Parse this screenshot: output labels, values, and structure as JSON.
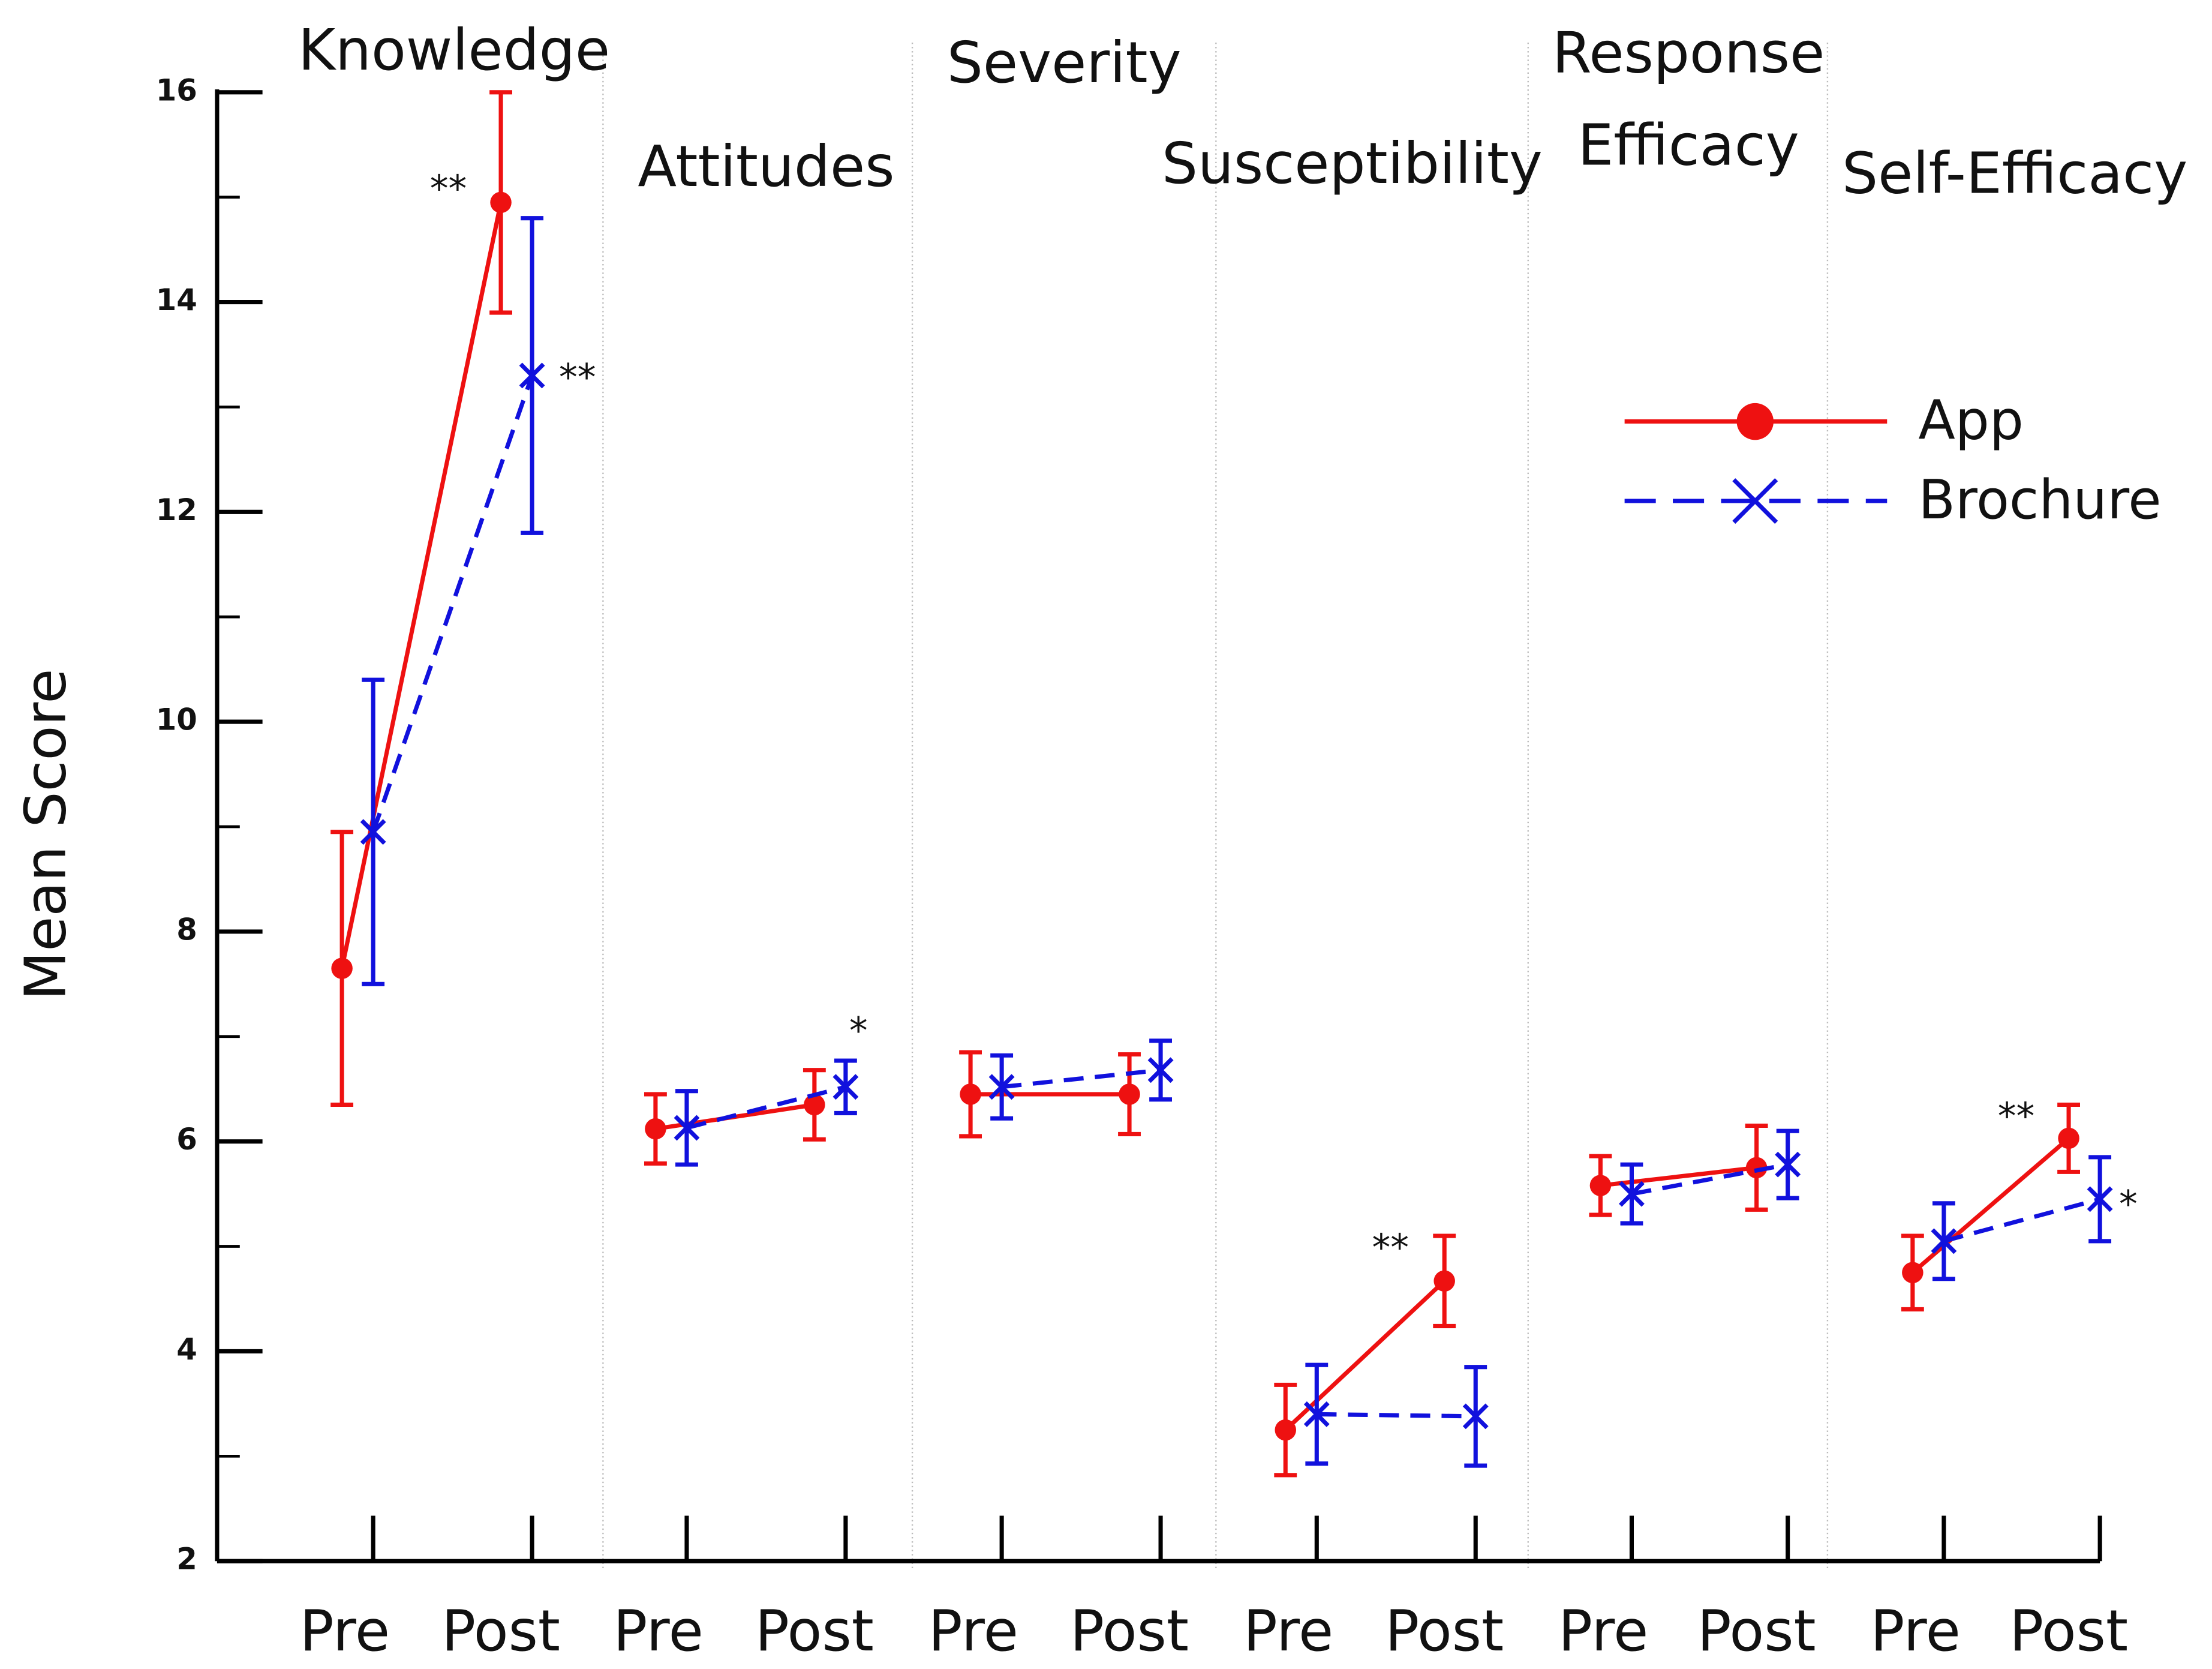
{
  "chart_data": {
    "type": "line",
    "y_label": "Mean Score",
    "panels": [
      [
        "Knowledge"
      ],
      [
        "Attitudes"
      ],
      [
        "Severity"
      ],
      [
        "Susceptibility"
      ],
      [
        "Response",
        "Efficacy"
      ],
      [
        "Self-Efficacy"
      ]
    ],
    "categories": [
      "Pre",
      "Post",
      "Pre",
      "Post",
      "Pre",
      "Post",
      "Pre",
      "Post",
      "Pre",
      "Post",
      "Pre",
      "Post"
    ],
    "series": [
      {
        "name": "App",
        "color": "#ee1111",
        "marker": "circle",
        "dash": "solid",
        "values": [
          7.65,
          14.95,
          6.12,
          6.35,
          6.45,
          6.45,
          3.25,
          4.67,
          5.58,
          5.75,
          4.75,
          6.03
        ],
        "errors": [
          1.3,
          1.05,
          0.33,
          0.33,
          0.4,
          0.38,
          0.43,
          0.43,
          0.28,
          0.4,
          0.35,
          0.32
        ]
      },
      {
        "name": "Brochure",
        "color": "#1111dd",
        "marker": "x",
        "dash": "dashed",
        "values": [
          8.95,
          13.3,
          6.13,
          6.52,
          6.52,
          6.68,
          3.4,
          3.38,
          5.5,
          5.78,
          5.05,
          5.45
        ],
        "errors": [
          1.45,
          1.5,
          0.35,
          0.25,
          0.3,
          0.28,
          0.47,
          0.47,
          0.28,
          0.32,
          0.36,
          0.4
        ]
      }
    ],
    "annotations": [
      {
        "text": "**",
        "series": 0,
        "index": 1
      },
      {
        "text": "**",
        "series": 1,
        "index": 1
      },
      {
        "text": "*",
        "series": 1,
        "index": 3
      },
      {
        "text": "**",
        "series": 0,
        "index": 7
      },
      {
        "text": "**",
        "series": 0,
        "index": 11
      },
      {
        "text": "*",
        "series": 1,
        "index": 11
      }
    ],
    "ylim": [
      2,
      16
    ],
    "yticks": [
      2,
      4,
      6,
      8,
      10,
      12,
      14,
      16
    ],
    "legend": "upper right"
  }
}
